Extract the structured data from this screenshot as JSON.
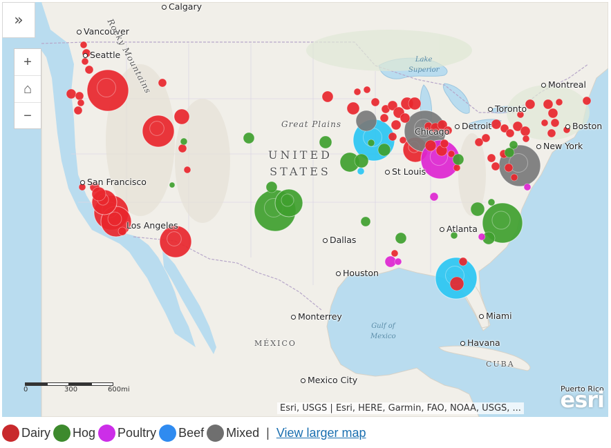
{
  "controls": {
    "expand_icon": "»",
    "zoom_in_icon": "+",
    "home_icon": "⌂",
    "zoom_out_icon": "−"
  },
  "colors": {
    "ocean": "#b9dcef",
    "land": "#f1efe9",
    "dairy": "#e8262c",
    "hog": "#3f9f2e",
    "poultry": "#dd25d0",
    "beef": "#2bc6f2",
    "mixed": "#7a7a7a"
  },
  "cities": [
    {
      "name": "Calgary"
    },
    {
      "name": "Vancouver"
    },
    {
      "name": "Seattle"
    },
    {
      "name": "Montreal"
    },
    {
      "name": "Toronto"
    },
    {
      "name": "Detroit"
    },
    {
      "name": "Boston"
    },
    {
      "name": "New York"
    },
    {
      "name": "Chicago"
    },
    {
      "name": "St Louis"
    },
    {
      "name": "San Francisco"
    },
    {
      "name": "Los Angeles"
    },
    {
      "name": "Dallas"
    },
    {
      "name": "Atlanta"
    },
    {
      "name": "Houston"
    },
    {
      "name": "Miami"
    },
    {
      "name": "Monterrey"
    },
    {
      "name": "Havana"
    },
    {
      "name": "Mexico City"
    },
    {
      "name": "Puerto Rico"
    }
  ],
  "regions": {
    "country_line1": "UNITED",
    "country_line2": "STATES",
    "great_plains": "Great Plains",
    "mountains": "Rocky Mountains",
    "mexico": "MÉXICO",
    "cuba": "CUBA"
  },
  "water": {
    "lake_superior_1": "Lake",
    "lake_superior_2": "Superior",
    "gulf_1": "Gulf of",
    "gulf_2": "Mexico"
  },
  "scale": {
    "t0": "0",
    "t1": "300",
    "t2": "600mi"
  },
  "attribution": "Esri, USGS | Esri, HERE, Garmin, FAO, NOAA, USGS, ...",
  "esri_logo": "esri",
  "legend": {
    "items": [
      {
        "label": "Dairy",
        "color": "#c8292c"
      },
      {
        "label": "Hog",
        "color": "#3d8a2d"
      },
      {
        "label": "Poultry",
        "color": "#cc2ee8"
      },
      {
        "label": "Beef",
        "color": "#2f8bf0"
      },
      {
        "label": "Mixed",
        "color": "#6f6f6f"
      }
    ],
    "separator": "|",
    "link": "View larger map"
  },
  "facilities": [
    {
      "type": "dairy",
      "size": 30
    },
    {
      "type": "dairy",
      "size": 30
    },
    {
      "type": "dairy",
      "size": 24
    },
    {
      "type": "dairy",
      "size": 24
    },
    {
      "type": "dairy",
      "size": 22
    },
    {
      "type": "dairy",
      "size": 20
    },
    {
      "type": "dairy",
      "size": 12
    },
    {
      "type": "hog",
      "size": 38
    },
    {
      "type": "hog",
      "size": 30
    },
    {
      "type": "hog",
      "size": 20
    },
    {
      "type": "beef",
      "size": 30
    },
    {
      "type": "beef",
      "size": 30
    },
    {
      "type": "mixed",
      "size": 30
    },
    {
      "type": "mixed",
      "size": 30
    },
    {
      "type": "poultry",
      "size": 28
    }
  ]
}
